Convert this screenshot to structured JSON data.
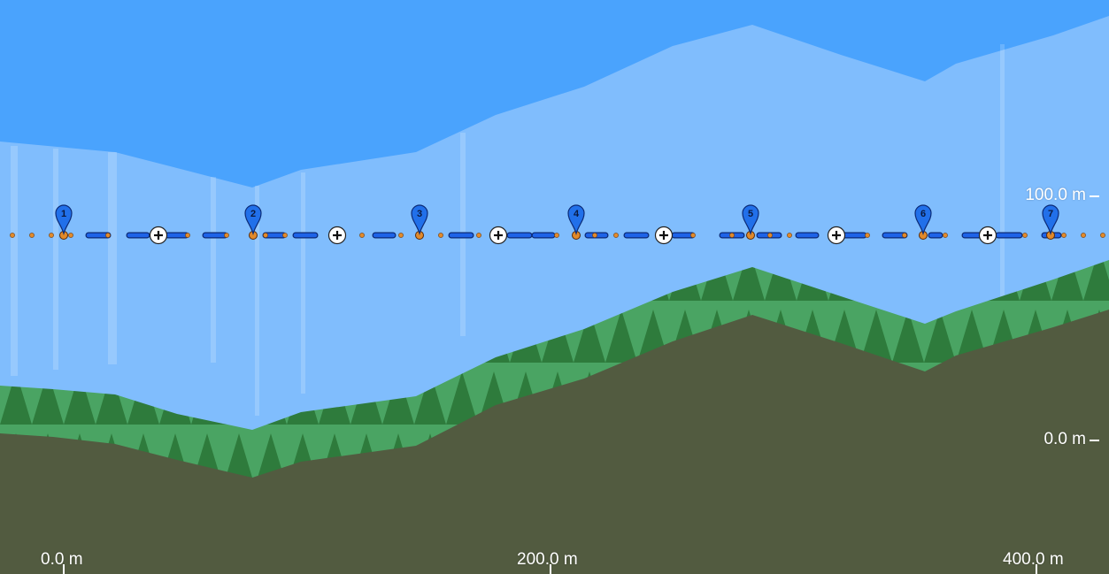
{
  "colors": {
    "sky_top": "#4aa3fd",
    "sky_band": "#80bdfd",
    "forest_light": "#4aa463",
    "forest_dark": "#2e7b3c",
    "ground": "#525b40",
    "route_blue": "#1e63e8",
    "route_outline": "#0b2a75",
    "marker_blue": "#2170ea",
    "dot_orange": "#e28a2a"
  },
  "icons": {
    "waypoint": "map-pin-icon",
    "add": "plus-circle-icon"
  },
  "axes": {
    "x_labels": [
      "0.0 m",
      "200.0 m",
      "400.0 m"
    ],
    "y_labels": [
      "100.0 m",
      "0.0 m"
    ]
  },
  "waypoints": [
    {
      "label": "1"
    },
    {
      "label": "2"
    },
    {
      "label": "3"
    },
    {
      "label": "4"
    },
    {
      "label": "5"
    },
    {
      "label": "6"
    },
    {
      "label": "7"
    }
  ],
  "add_buttons_count": 6
}
